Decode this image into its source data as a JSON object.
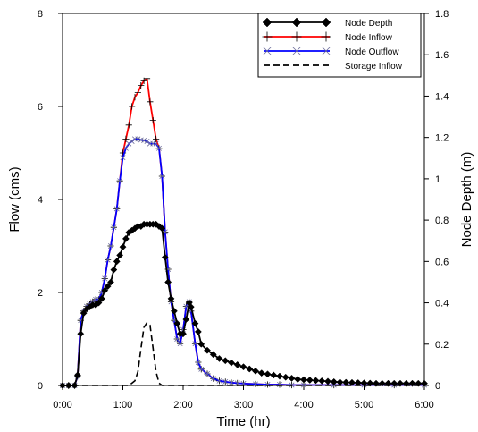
{
  "chart_data": {
    "type": "line",
    "title": "",
    "xlabel": "Time (hr)",
    "ylabel": "Flow (cms)",
    "y2label": "Node Depth (m)",
    "x_unit": "hours",
    "xlim": [
      0,
      6
    ],
    "ylim": [
      0,
      8
    ],
    "y2lim": [
      0,
      1.8
    ],
    "x_ticks": [
      {
        "value": 0,
        "label": "0:00"
      },
      {
        "value": 1,
        "label": "1:00"
      },
      {
        "value": 2,
        "label": "2:00"
      },
      {
        "value": 3,
        "label": "3:00"
      },
      {
        "value": 4,
        "label": "4:00"
      },
      {
        "value": 5,
        "label": "5:00"
      },
      {
        "value": 6,
        "label": "6:00"
      }
    ],
    "y_ticks": [
      {
        "value": 0,
        "label": "0"
      },
      {
        "value": 2,
        "label": "2"
      },
      {
        "value": 4,
        "label": "4"
      },
      {
        "value": 6,
        "label": "6"
      },
      {
        "value": 8,
        "label": "8"
      }
    ],
    "y2_ticks": [
      {
        "value": 0,
        "label": "0"
      },
      {
        "value": 0.2,
        "label": "0.2"
      },
      {
        "value": 0.4,
        "label": "0.4"
      },
      {
        "value": 0.6,
        "label": "0.6"
      },
      {
        "value": 0.8,
        "label": "0.8"
      },
      {
        "value": 1.0,
        "label": "1"
      },
      {
        "value": 1.2,
        "label": "1.2"
      },
      {
        "value": 1.4,
        "label": "1.4"
      },
      {
        "value": 1.6,
        "label": "1.6"
      },
      {
        "value": 1.8,
        "label": "1.8"
      }
    ],
    "grid": false,
    "legend_position": "top-right",
    "series": [
      {
        "name": "Node Depth",
        "axis": "right",
        "color": "#000000",
        "marker": "diamond",
        "dash": "solid",
        "x": [
          0,
          0.1,
          0.2,
          0.25,
          0.3,
          0.35,
          0.4,
          0.45,
          0.5,
          0.55,
          0.6,
          0.65,
          0.7,
          0.75,
          0.8,
          0.85,
          0.9,
          0.95,
          1.0,
          1.05,
          1.1,
          1.15,
          1.2,
          1.25,
          1.3,
          1.35,
          1.4,
          1.45,
          1.5,
          1.55,
          1.6,
          1.65,
          1.7,
          1.75,
          1.8,
          1.85,
          1.9,
          1.95,
          2.0,
          2.05,
          2.1,
          2.13,
          2.2,
          2.25,
          2.3,
          2.4,
          2.5,
          2.6,
          2.7,
          2.8,
          2.9,
          3.0,
          3.1,
          3.2,
          3.3,
          3.4,
          3.5,
          3.6,
          3.7,
          3.8,
          3.9,
          4.0,
          4.1,
          4.2,
          4.3,
          4.4,
          4.5,
          4.6,
          4.7,
          4.8,
          4.9,
          5.0,
          5.1,
          5.2,
          5.3,
          5.4,
          5.5,
          5.6,
          5.7,
          5.8,
          5.9,
          6.0
        ],
        "y": [
          0,
          0,
          0,
          0.05,
          0.25,
          0.35,
          0.37,
          0.38,
          0.39,
          0.39,
          0.4,
          0.42,
          0.46,
          0.48,
          0.5,
          0.56,
          0.6,
          0.63,
          0.67,
          0.71,
          0.74,
          0.75,
          0.76,
          0.77,
          0.77,
          0.78,
          0.78,
          0.78,
          0.78,
          0.78,
          0.77,
          0.76,
          0.62,
          0.5,
          0.42,
          0.36,
          0.3,
          0.25,
          0.25,
          0.32,
          0.4,
          0.38,
          0.3,
          0.26,
          0.2,
          0.17,
          0.15,
          0.13,
          0.12,
          0.11,
          0.1,
          0.09,
          0.08,
          0.07,
          0.06,
          0.055,
          0.05,
          0.045,
          0.04,
          0.035,
          0.03,
          0.028,
          0.026,
          0.024,
          0.022,
          0.02,
          0.018,
          0.016,
          0.015,
          0.014,
          0.013,
          0.012,
          0.011,
          0.01,
          0.01,
          0.01,
          0.01,
          0.01,
          0.01,
          0.01,
          0.01,
          0.01
        ]
      },
      {
        "name": "Node Inflow",
        "axis": "left",
        "color": "#ff0000",
        "marker": "plus",
        "dash": "solid",
        "x": [
          0,
          0.1,
          0.2,
          0.25,
          0.3,
          0.35,
          0.4,
          0.45,
          0.5,
          0.55,
          0.6,
          0.65,
          0.7,
          0.75,
          0.8,
          0.85,
          0.9,
          0.95,
          1.0,
          1.05,
          1.1,
          1.15,
          1.2,
          1.25,
          1.3,
          1.35,
          1.4,
          1.45,
          1.5,
          1.55,
          1.6,
          1.65,
          1.7,
          1.75,
          1.8,
          1.85,
          1.9,
          1.95,
          2.0,
          2.05,
          2.1,
          2.13,
          2.2,
          2.25,
          2.3,
          2.4,
          2.5,
          2.6,
          2.7,
          2.8,
          2.9,
          3.0,
          3.2,
          3.4,
          3.6,
          3.8,
          4.0,
          4.5,
          5.0,
          5.5,
          6.0
        ],
        "y": [
          0,
          0,
          0,
          0.2,
          1.4,
          1.6,
          1.7,
          1.75,
          1.8,
          1.85,
          1.85,
          2.0,
          2.3,
          2.7,
          3.0,
          3.4,
          3.8,
          4.4,
          5.0,
          5.3,
          5.6,
          6.0,
          6.2,
          6.3,
          6.45,
          6.55,
          6.6,
          6.1,
          5.7,
          5.3,
          5.1,
          4.5,
          3.3,
          2.5,
          1.8,
          1.4,
          1.0,
          0.9,
          1.2,
          1.7,
          1.8,
          1.6,
          0.9,
          0.5,
          0.35,
          0.25,
          0.15,
          0.1,
          0.08,
          0.06,
          0.05,
          0.04,
          0.03,
          0.02,
          0.02,
          0.01,
          0.01,
          0.01,
          0.01,
          0.01,
          0.01
        ]
      },
      {
        "name": "Node Outflow",
        "axis": "left",
        "color": "#0000ff",
        "marker": "x",
        "dash": "solid",
        "x": [
          0,
          0.1,
          0.2,
          0.25,
          0.3,
          0.35,
          0.4,
          0.45,
          0.5,
          0.55,
          0.6,
          0.65,
          0.7,
          0.75,
          0.8,
          0.85,
          0.9,
          0.95,
          1.0,
          1.05,
          1.1,
          1.15,
          1.2,
          1.25,
          1.3,
          1.35,
          1.4,
          1.45,
          1.5,
          1.55,
          1.6,
          1.65,
          1.7,
          1.75,
          1.8,
          1.85,
          1.9,
          1.95,
          2.0,
          2.05,
          2.1,
          2.13,
          2.2,
          2.25,
          2.3,
          2.4,
          2.5,
          2.6,
          2.7,
          2.8,
          2.9,
          3.0,
          3.2,
          3.4,
          3.6,
          3.8,
          4.0,
          4.5,
          5.0,
          5.5,
          6.0
        ],
        "y": [
          0,
          0,
          0,
          0.2,
          1.4,
          1.6,
          1.7,
          1.75,
          1.8,
          1.85,
          1.85,
          2.0,
          2.3,
          2.7,
          3.0,
          3.4,
          3.8,
          4.4,
          4.9,
          5.1,
          5.2,
          5.25,
          5.3,
          5.3,
          5.28,
          5.27,
          5.25,
          5.2,
          5.2,
          5.2,
          5.1,
          4.5,
          3.3,
          2.5,
          1.8,
          1.4,
          1.0,
          0.9,
          1.2,
          1.7,
          1.8,
          1.6,
          0.9,
          0.5,
          0.35,
          0.25,
          0.15,
          0.1,
          0.08,
          0.06,
          0.05,
          0.04,
          0.03,
          0.02,
          0.02,
          0.01,
          0.01,
          0.01,
          0.01,
          0.01,
          0.01
        ]
      },
      {
        "name": "Storage Inflow",
        "axis": "left",
        "color": "#000000",
        "marker": "none",
        "dash": "dashed",
        "x": [
          0,
          1.0,
          1.1,
          1.2,
          1.25,
          1.3,
          1.35,
          1.4,
          1.45,
          1.5,
          1.55,
          1.6,
          1.65,
          2.0,
          6.0
        ],
        "y": [
          0,
          0,
          0,
          0.1,
          0.3,
          0.8,
          1.25,
          1.35,
          1.3,
          0.8,
          0.3,
          0.05,
          0,
          0,
          0
        ]
      }
    ]
  }
}
